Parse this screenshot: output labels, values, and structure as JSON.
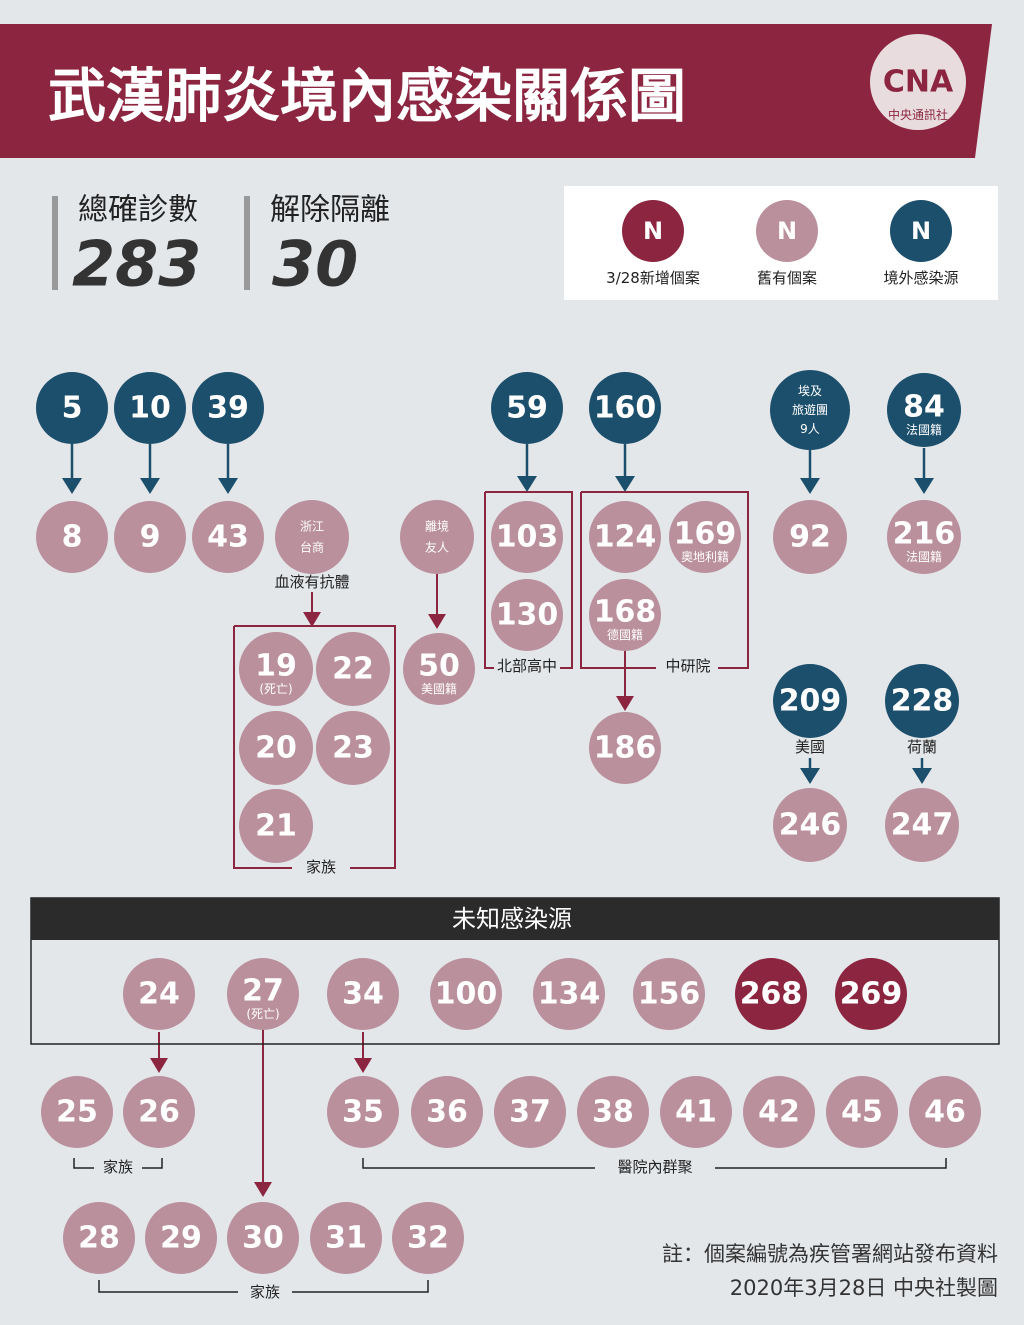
{
  "title": "武漢肺炎境內感染關係圖",
  "logo": {
    "mark": "CNA",
    "text": "中央通訊社"
  },
  "stats": [
    {
      "label": "總確診數",
      "value": "283"
    },
    {
      "label": "解除隔離",
      "value": "30"
    }
  ],
  "legend": [
    {
      "symbol": "N",
      "label": "3/28新增個案",
      "color": "#8c2640"
    },
    {
      "symbol": "N",
      "label": "舊有個案",
      "color": "#b9909c"
    },
    {
      "symbol": "N",
      "label": "境外感染源",
      "color": "#1c4f6c"
    }
  ],
  "colors": {
    "new": "#8c2640",
    "old": "#b9909c",
    "imported": "#1c4f6c",
    "banner": "#8c2640",
    "background": "#e4e7ea"
  },
  "cases": {
    "c5": "5",
    "c10": "10",
    "c39": "39",
    "c59": "59",
    "c160": "160",
    "c_egypt": "埃及旅遊團9人",
    "c84": "84",
    "c84_note": "法國籍",
    "c8": "8",
    "c9": "9",
    "c43": "43",
    "c_zj": "浙江台商",
    "c_friend": "離境友人",
    "c103": "103",
    "c130": "130",
    "c124": "124",
    "c169": "169",
    "c169_note": "奧地利籍",
    "c168": "168",
    "c168_note": "德國籍",
    "c92": "92",
    "c216": "216",
    "c216_note": "法國籍",
    "c19": "19",
    "c19_note": "(死亡)",
    "c22": "22",
    "c20": "20",
    "c23": "23",
    "c21": "21",
    "c50": "50",
    "c50_note": "美國籍",
    "c186": "186",
    "c209": "209",
    "c209_note": "美國",
    "c228": "228",
    "c228_note": "荷蘭",
    "c246": "246",
    "c247": "247",
    "c24": "24",
    "c27": "27",
    "c27_note": "(死亡)",
    "c34": "34",
    "c100": "100",
    "c134": "134",
    "c156": "156",
    "c268": "268",
    "c269": "269",
    "c25": "25",
    "c26": "26",
    "c35": "35",
    "c36": "36",
    "c37": "37",
    "c38": "38",
    "c41": "41",
    "c42": "42",
    "c45": "45",
    "c46": "46",
    "c28": "28",
    "c29": "29",
    "c30": "30",
    "c31": "31",
    "c32": "32"
  },
  "labels": {
    "antibody": "血液有抗體",
    "north_hs": "北部高中",
    "academia": "中研院",
    "family1": "家族",
    "family2": "家族",
    "family3": "家族",
    "hospital": "醫院內群聚",
    "unknown": "未知感染源"
  },
  "notes": {
    "line1": "註：個案編號為疾管署網站發布資料",
    "line2": "2020年3月28日  中央社製圖"
  }
}
